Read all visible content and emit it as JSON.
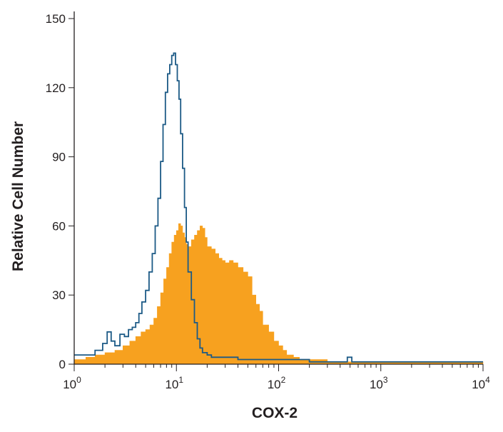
{
  "chart_data": {
    "type": "area",
    "title": "",
    "xlabel": "COX-2",
    "ylabel": "Relative Cell Number",
    "xscale": "log",
    "xlim": [
      1,
      10000
    ],
    "ylim": [
      0,
      150
    ],
    "grid": false,
    "legend": "none",
    "x_tick_labels": [
      {
        "value": 1,
        "base": "10",
        "exp": "0"
      },
      {
        "value": 10,
        "base": "10",
        "exp": "1"
      },
      {
        "value": 100,
        "base": "10",
        "exp": "2"
      },
      {
        "value": 1000,
        "base": "10",
        "exp": "3"
      },
      {
        "value": 10000,
        "base": "10",
        "exp": "4"
      }
    ],
    "y_tick_labels": [
      {
        "value": 0,
        "label": "0"
      },
      {
        "value": 30,
        "label": "30"
      },
      {
        "value": 60,
        "label": "60"
      },
      {
        "value": 90,
        "label": "90"
      },
      {
        "value": 120,
        "label": "120"
      },
      {
        "value": 150,
        "label": "150"
      }
    ],
    "series": [
      {
        "style": "filled",
        "color": "#f7a11f",
        "x": [
          1,
          1.3,
          1.6,
          2,
          2.5,
          3,
          3.5,
          4,
          4.5,
          5,
          5.5,
          6,
          6.5,
          7,
          7.5,
          8,
          8.5,
          9,
          9.5,
          10,
          10.5,
          11,
          11.5,
          12,
          12.5,
          13,
          14,
          15,
          16,
          17,
          18,
          19,
          20,
          22,
          24,
          26,
          28,
          30,
          33,
          36,
          40,
          45,
          50,
          55,
          60,
          65,
          70,
          80,
          90,
          100,
          110,
          120,
          140,
          160,
          200,
          300,
          500,
          1000,
          10000
        ],
        "y": [
          2,
          3,
          4,
          5,
          6,
          8,
          10,
          12,
          14,
          15,
          17,
          20,
          25,
          31,
          37,
          42,
          48,
          53,
          56,
          58,
          61,
          60,
          57,
          55,
          52,
          51,
          54,
          56,
          58,
          60,
          59,
          55,
          51,
          50,
          48,
          46,
          45,
          44,
          45,
          44,
          42,
          40,
          38,
          30,
          26,
          23,
          17,
          14,
          10,
          8,
          6,
          4,
          3,
          2,
          2,
          1,
          1,
          1,
          1
        ]
      },
      {
        "style": "outline",
        "color": "#1c5a86",
        "x": [
          1,
          1.3,
          1.6,
          1.9,
          2.1,
          2.3,
          2.5,
          2.8,
          3.1,
          3.4,
          3.7,
          4.0,
          4.3,
          4.6,
          5.0,
          5.4,
          5.8,
          6.2,
          6.6,
          7.0,
          7.4,
          7.8,
          8.2,
          8.6,
          9.0,
          9.4,
          9.8,
          10.2,
          10.6,
          11.0,
          11.5,
          12.0,
          12.5,
          13.0,
          14.0,
          15.0,
          16.0,
          17.0,
          18.0,
          20.0,
          22.0,
          25.0,
          30.0,
          40.0,
          60.0,
          100.0,
          200.0,
          400.0,
          470.0,
          520.0,
          700.0,
          1000.0,
          10000.0
        ],
        "y": [
          4,
          4,
          6,
          9,
          14,
          10,
          8,
          13,
          12,
          15,
          16,
          18,
          22,
          27,
          32,
          40,
          48,
          60,
          72,
          88,
          104,
          118,
          126,
          130,
          134,
          135,
          130,
          123,
          115,
          100,
          85,
          68,
          53,
          40,
          28,
          18,
          11,
          7,
          5,
          4,
          3,
          3,
          3,
          2,
          2,
          2,
          1,
          1,
          3,
          1,
          1,
          1,
          1
        ]
      }
    ]
  }
}
